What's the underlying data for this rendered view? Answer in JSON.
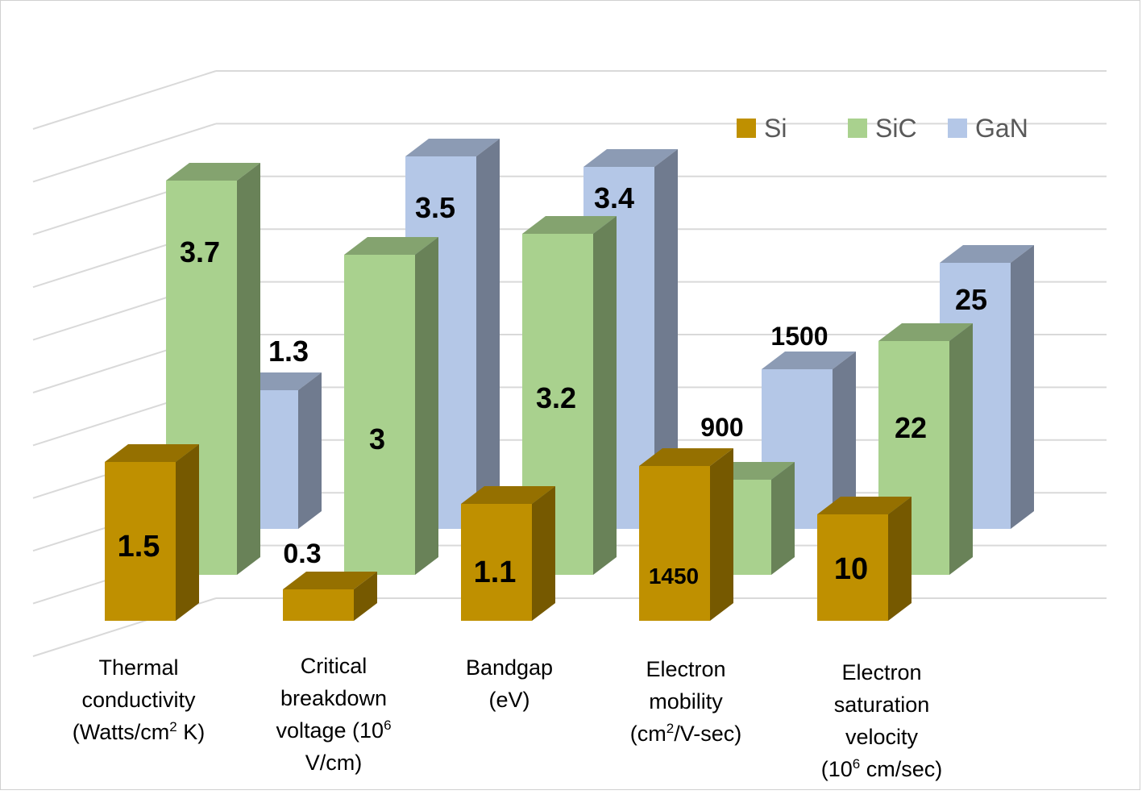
{
  "chart_data": {
    "type": "bar",
    "title": "",
    "xlabel": "",
    "ylabel": "",
    "grid": true,
    "legend_position": "top-right",
    "categories": [
      {
        "main": "Thermal conductivity (Watts/cm",
        "sup": "2",
        "tail": " K)"
      },
      {
        "main": "Critical breakdown voltage (10",
        "sup": "6",
        "tail": " V/cm)"
      },
      {
        "main": "Bandgap (eV)",
        "sup": "",
        "tail": ""
      },
      {
        "main": "Electron mobility (cm",
        "sup": "2",
        "tail": "/V-sec)"
      },
      {
        "main": "Electron saturation velocity (10",
        "sup": "6",
        "tail": " cm/sec)"
      }
    ],
    "category_lines": [
      [
        {
          "t": "Thermal"
        },
        {
          "t": "conductivity"
        },
        {
          "t": "(Watts/cm",
          "sup": "2",
          "tail": " K)"
        }
      ],
      [
        {
          "t": "Critical"
        },
        {
          "t": "breakdown"
        },
        {
          "t": "voltage (10",
          "sup": "6",
          "tail": ""
        },
        {
          "t": "V/cm)"
        }
      ],
      [
        {
          "t": "Bandgap"
        },
        {
          "t": "(eV)"
        }
      ],
      [
        {
          "t": "Electron"
        },
        {
          "t": "mobility"
        },
        {
          "t": "(cm",
          "sup": "2",
          "tail": "/V-sec)"
        }
      ],
      [
        {
          "t": "Electron"
        },
        {
          "t": "saturation"
        },
        {
          "t": "velocity"
        },
        {
          "t": "(10",
          "sup": "6",
          "tail": " cm/sec)"
        }
      ]
    ],
    "series": [
      {
        "name": "Si",
        "color": "#bf9000",
        "values": [
          1.5,
          0.3,
          1.1,
          1450,
          10
        ],
        "labels": [
          "1.5",
          "0.3",
          "1.1",
          "1450",
          "10"
        ]
      },
      {
        "name": "SiC",
        "color": "#a9d18e",
        "values": [
          3.7,
          3,
          3.2,
          900,
          22
        ],
        "labels": [
          "3.7",
          "3",
          "3.2",
          "900",
          "22"
        ]
      },
      {
        "name": "GaN",
        "color": "#b4c7e7",
        "values": [
          1.3,
          3.5,
          3.4,
          1500,
          25
        ],
        "labels": [
          "1.3",
          "3.5",
          "3.4",
          "1500",
          "25"
        ]
      }
    ]
  }
}
